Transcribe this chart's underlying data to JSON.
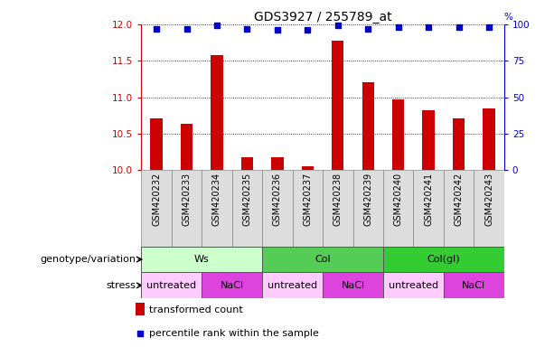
{
  "title": "GDS3927 / 255789_at",
  "samples": [
    "GSM420232",
    "GSM420233",
    "GSM420234",
    "GSM420235",
    "GSM420236",
    "GSM420237",
    "GSM420238",
    "GSM420239",
    "GSM420240",
    "GSM420241",
    "GSM420242",
    "GSM420243"
  ],
  "bar_values": [
    10.71,
    10.64,
    11.58,
    10.18,
    10.17,
    10.05,
    11.77,
    11.21,
    10.97,
    10.82,
    10.71,
    10.84
  ],
  "percentile_values": [
    97,
    97,
    99,
    97,
    96,
    96,
    99,
    97,
    98,
    98,
    98,
    98
  ],
  "ylim_left": [
    10.0,
    12.0
  ],
  "ylim_right": [
    0,
    100
  ],
  "yticks_left": [
    10.0,
    10.5,
    11.0,
    11.5,
    12.0
  ],
  "yticks_right": [
    0,
    25,
    50,
    75,
    100
  ],
  "bar_color": "#cc0000",
  "percentile_color": "#0000cc",
  "bar_width": 0.4,
  "genotype_groups": [
    {
      "label": "Ws",
      "start": 0,
      "end": 3,
      "color": "#ccffcc"
    },
    {
      "label": "Col",
      "start": 4,
      "end": 7,
      "color": "#55cc55"
    },
    {
      "label": "Col(gl)",
      "start": 8,
      "end": 11,
      "color": "#33cc33"
    }
  ],
  "stress_groups": [
    {
      "label": "untreated",
      "start": 0,
      "end": 1,
      "color": "#ffccff"
    },
    {
      "label": "NaCl",
      "start": 2,
      "end": 3,
      "color": "#dd44dd"
    },
    {
      "label": "untreated",
      "start": 4,
      "end": 5,
      "color": "#ffccff"
    },
    {
      "label": "NaCl",
      "start": 6,
      "end": 7,
      "color": "#dd44dd"
    },
    {
      "label": "untreated",
      "start": 8,
      "end": 9,
      "color": "#ffccff"
    },
    {
      "label": "NaCl",
      "start": 10,
      "end": 11,
      "color": "#dd44dd"
    }
  ],
  "legend_bar_label": "transformed count",
  "legend_pct_label": "percentile rank within the sample",
  "genotype_row_label": "genotype/variation",
  "stress_row_label": "stress",
  "left_axis_color": "#cc0000",
  "right_axis_color": "#0000cc",
  "background_color": "#ffffff",
  "title_fontsize": 10,
  "tick_fontsize": 7.5,
  "label_fontsize": 8,
  "sample_fontsize": 7,
  "row_label_fontsize": 8,
  "legend_fontsize": 8
}
